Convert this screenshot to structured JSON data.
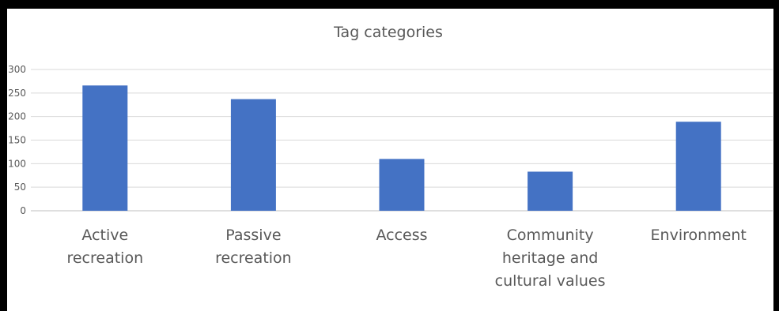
{
  "chart_data": {
    "type": "bar",
    "title": "Tag categories",
    "categories": [
      [
        "Active",
        "recreation"
      ],
      [
        "Passive",
        "recreation"
      ],
      [
        "Access"
      ],
      [
        "Community",
        "heritage and",
        "cultural values"
      ],
      [
        "Environment"
      ]
    ],
    "values": [
      266,
      237,
      110,
      83,
      189
    ],
    "ylim": [
      0,
      300
    ],
    "yticks": [
      0,
      50,
      100,
      150,
      200,
      250,
      300
    ],
    "grid": true,
    "legend": "none",
    "bar_color": "#4472c4"
  }
}
